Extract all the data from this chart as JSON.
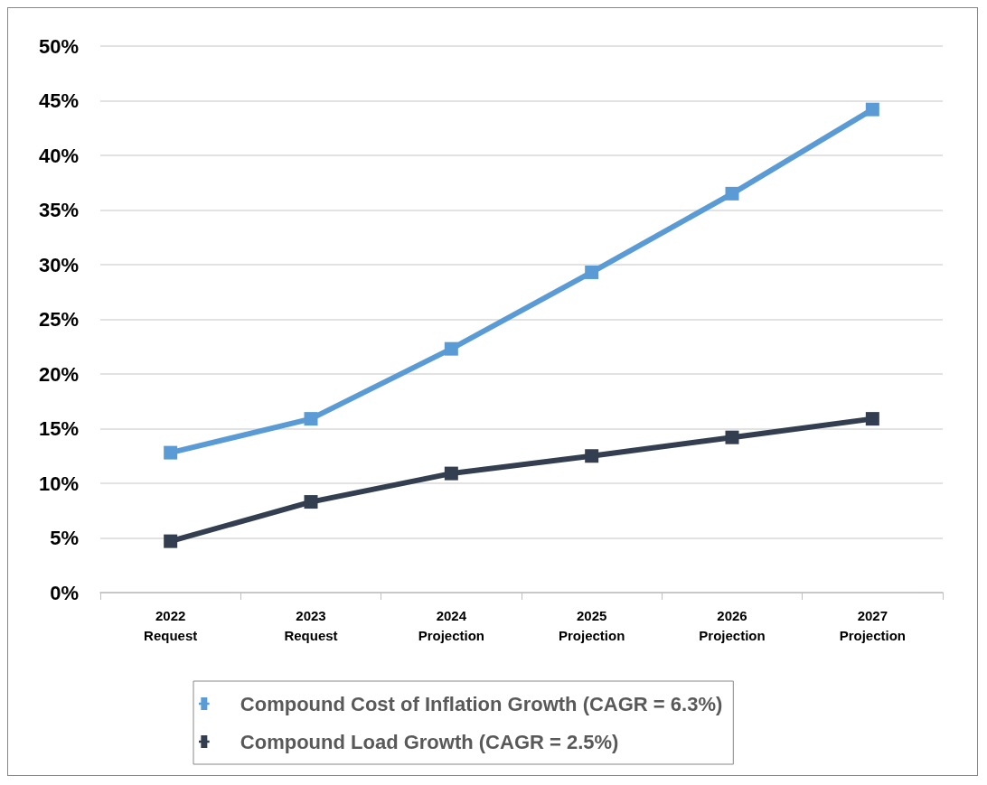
{
  "chart_data": {
    "type": "line",
    "categories": [
      "2022\nRequest",
      "2023\nRequest",
      "2024\nProjection",
      "2025\nProjection",
      "2026\nProjection",
      "2027\nProjection"
    ],
    "series": [
      {
        "name": "Compound Cost of Inflation Growth (CAGR = 6.3%)",
        "color": "#5b9bd5",
        "values": [
          12.8,
          15.9,
          22.3,
          29.3,
          36.5,
          44.2
        ]
      },
      {
        "name": "Compound Load Growth (CAGR = 2.5%)",
        "color": "#333f50",
        "values": [
          4.7,
          8.3,
          10.9,
          12.5,
          14.2,
          15.9
        ]
      }
    ],
    "ylim": [
      0,
      50
    ],
    "yticks": [
      {
        "value": 0,
        "label": "0%"
      },
      {
        "value": 5,
        "label": "5%"
      },
      {
        "value": 10,
        "label": "10%"
      },
      {
        "value": 15,
        "label": "15%"
      },
      {
        "value": 20,
        "label": "20%"
      },
      {
        "value": 25,
        "label": "25%"
      },
      {
        "value": 30,
        "label": "30%"
      },
      {
        "value": 35,
        "label": "35%"
      },
      {
        "value": 40,
        "label": "40%"
      },
      {
        "value": 45,
        "label": "45%"
      },
      {
        "value": 50,
        "label": "50%"
      }
    ],
    "grid": "y",
    "legend": "bottom",
    "marker": "square",
    "line_style": "solid"
  }
}
